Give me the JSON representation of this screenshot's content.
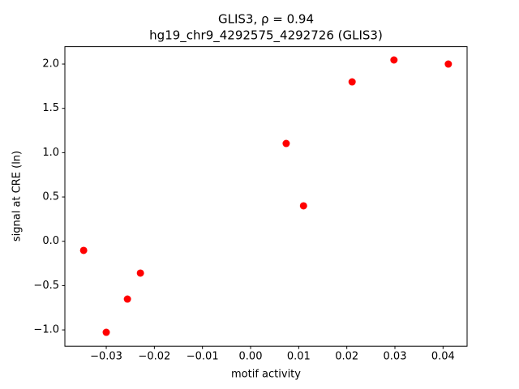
{
  "chart_data": {
    "type": "scatter",
    "title": "GLIS3, ρ = 0.94",
    "subtitle": "hg19_chr9_4292575_4292726 (GLIS3)",
    "x_label": "motif activity",
    "y_label": "signal at CRE (ln)",
    "color": "#ff0000",
    "x": [
      -0.0347,
      -0.03,
      -0.0256,
      -0.0229,
      0.0074,
      0.011,
      0.0211,
      0.0298,
      0.0411
    ],
    "values": [
      -0.103,
      -1.027,
      -0.652,
      -0.359,
      1.104,
      0.4,
      1.799,
      2.046,
      2.0
    ],
    "xlim": [
      -0.0386,
      0.045
    ],
    "ylim": [
      -1.184,
      2.196
    ],
    "xticks": [
      {
        "value": -0.03,
        "label": "−0.03"
      },
      {
        "value": -0.02,
        "label": "−0.02"
      },
      {
        "value": -0.01,
        "label": "−0.01"
      },
      {
        "value": 0,
        "label": "0.00"
      },
      0.01,
      0.02,
      0.03,
      0.04
    ],
    "yticks": [
      {
        "value": -1,
        "label": "−1.0"
      },
      {
        "value": -0.5,
        "label": "−0.5"
      },
      {
        "value": 0,
        "label": "0.0"
      },
      0.5,
      {
        "value": 1,
        "label": "1.0"
      },
      1.5,
      {
        "value": 2,
        "label": "2.0"
      }
    ],
    "grid": false
  }
}
